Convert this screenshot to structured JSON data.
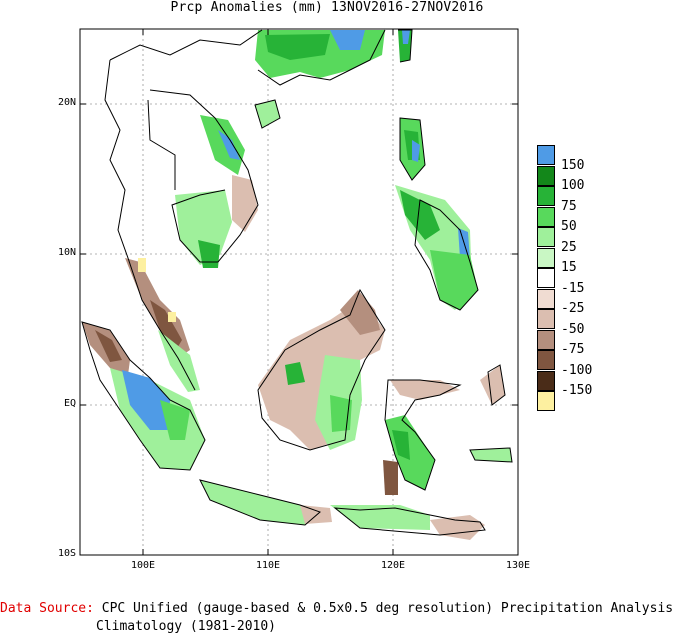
{
  "title": "Prcp Anomalies (mm) 13NOV2016-27NOV2016",
  "y_labels": [
    "20N",
    "10N",
    "EQ",
    "10S"
  ],
  "x_labels": [
    "100E",
    "110E",
    "120E",
    "130E"
  ],
  "legend": {
    "colors": [
      "#4f9be6",
      "#13871a",
      "#27b337",
      "#58d95c",
      "#9ff09b",
      "#c9f7c4",
      "#ffffff",
      "#f0dcd2",
      "#dbbeb0",
      "#b48f7e",
      "#7f5640",
      "#4a2c18",
      "#fdf0a0"
    ],
    "labels": [
      "150",
      "100",
      "75",
      "50",
      "25",
      "15",
      "-15",
      "-25",
      "-50",
      "-75",
      "-100",
      "-150"
    ]
  },
  "footer": {
    "source_label": "Data Source:",
    "source_text": "CPC Unified (gauge-based & 0.5x0.5 deg resolution) Precipitation Analysis",
    "climatology": "Climatology (1981-2010)"
  }
}
